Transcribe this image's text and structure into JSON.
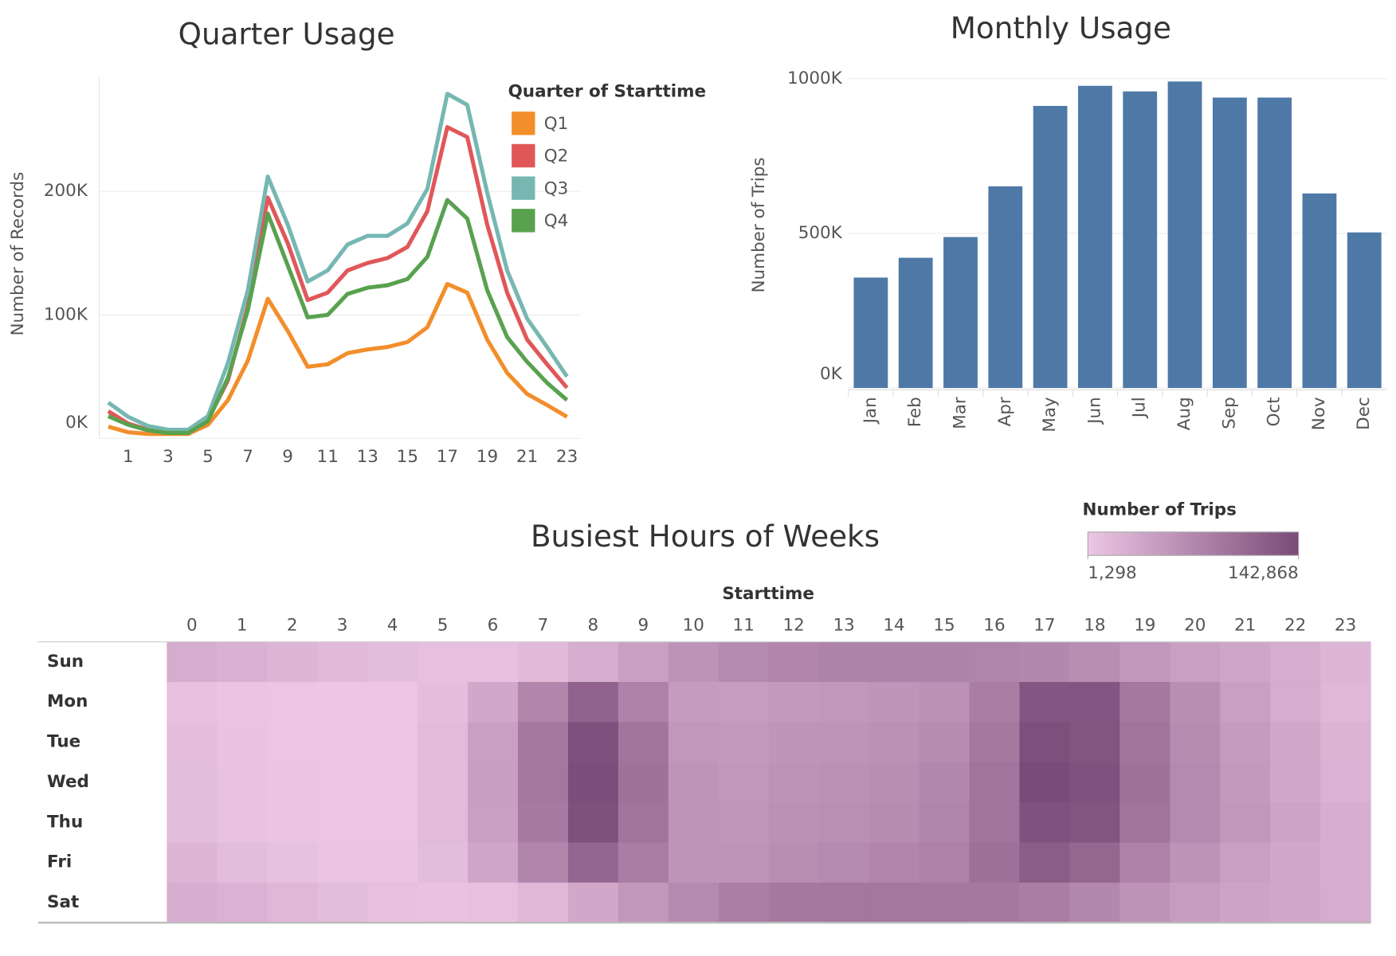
{
  "chart_data": [
    {
      "type": "line",
      "title": "Quarter Usage",
      "y_label": "Number of Records",
      "legend_title": "Quarter of Starttime",
      "x": [
        0,
        1,
        2,
        3,
        4,
        5,
        6,
        7,
        8,
        9,
        10,
        11,
        12,
        13,
        14,
        15,
        16,
        17,
        18,
        19,
        20,
        21,
        22,
        23
      ],
      "xlim": [
        -0.45,
        23.7
      ],
      "xticks": [
        1,
        3,
        5,
        7,
        9,
        11,
        13,
        15,
        17,
        19,
        21,
        23
      ],
      "ylim": [
        0,
        293000
      ],
      "yticks": [
        {
          "value": 0,
          "label": "0K"
        },
        {
          "value": 100000,
          "label": "100K"
        },
        {
          "value": 200000,
          "label": "200K"
        }
      ],
      "grid": true,
      "series": [
        {
          "name": "Q1",
          "color": "#f28e2b",
          "values": [
            9500,
            5000,
            3600,
            3600,
            3600,
            11000,
            31000,
            63000,
            113000,
            87000,
            58000,
            60000,
            69000,
            72000,
            74000,
            78000,
            90000,
            125000,
            118000,
            80000,
            53000,
            36000,
            27000,
            17500
          ]
        },
        {
          "name": "Q2",
          "color": "#e15759",
          "values": [
            22000,
            12000,
            7000,
            5000,
            5000,
            15000,
            47000,
            107000,
            195000,
            158000,
            112000,
            118000,
            136000,
            142000,
            146000,
            155000,
            184000,
            252000,
            244000,
            173000,
            118000,
            80000,
            60000,
            41000
          ]
        },
        {
          "name": "Q3",
          "color": "#76b7b2",
          "values": [
            29000,
            17500,
            10000,
            7000,
            7000,
            18000,
            61000,
            120000,
            212000,
            173000,
            127000,
            136000,
            157000,
            164000,
            164000,
            174000,
            202000,
            279000,
            270000,
            199000,
            136000,
            97000,
            74000,
            50000
          ]
        },
        {
          "name": "Q4",
          "color": "#59a14f",
          "values": [
            18000,
            11000,
            6500,
            4400,
            4400,
            14000,
            49000,
            104000,
            182000,
            140000,
            98000,
            100000,
            117000,
            122000,
            124000,
            129000,
            147000,
            193000,
            178000,
            120000,
            82000,
            62000,
            45000,
            31000
          ]
        }
      ]
    },
    {
      "type": "bar",
      "title": "Monthly Usage",
      "y_label": "Number of Trips",
      "categories": [
        "Jan",
        "Feb",
        "Mar",
        "Apr",
        "May",
        "Jun",
        "Jul",
        "Aug",
        "Sep",
        "Oct",
        "Nov",
        "Dec"
      ],
      "values": [
        357000,
        421000,
        488000,
        652000,
        912000,
        977000,
        959000,
        991000,
        939000,
        939000,
        629000,
        503000
      ],
      "color": "#4e79a7",
      "ylim": [
        0,
        1010000
      ],
      "yticks": [
        {
          "value": 0,
          "label": "0K"
        },
        {
          "value": 500000,
          "label": "500K"
        },
        {
          "value": 1000000,
          "label": "1000K"
        }
      ],
      "grid": true
    },
    {
      "type": "heatmap",
      "title": "Busiest Hours of Weeks",
      "x_label": "Starttime",
      "columns": [
        0,
        1,
        2,
        3,
        4,
        5,
        6,
        7,
        8,
        9,
        10,
        11,
        12,
        13,
        14,
        15,
        16,
        17,
        18,
        19,
        20,
        21,
        22,
        23
      ],
      "rows": [
        "Sun",
        "Mon",
        "Tue",
        "Wed",
        "Thu",
        "Fri",
        "Sat"
      ],
      "values": [
        [
          30000,
          25000,
          20000,
          15000,
          12000,
          8000,
          8000,
          15000,
          30000,
          45000,
          60000,
          70000,
          75000,
          78000,
          78000,
          78000,
          76000,
          72000,
          65000,
          55000,
          45000,
          38000,
          30000,
          20000
        ],
        [
          8000,
          4000,
          2500,
          1298,
          2000,
          10000,
          35000,
          75000,
          115000,
          80000,
          50000,
          48000,
          52000,
          55000,
          57000,
          62000,
          85000,
          130000,
          130000,
          90000,
          65000,
          45000,
          30000,
          18000
        ],
        [
          10000,
          5000,
          3000,
          1800,
          2500,
          14000,
          45000,
          90000,
          138000,
          95000,
          55000,
          52000,
          57000,
          58000,
          62000,
          68000,
          90000,
          138000,
          132000,
          95000,
          68000,
          50000,
          35000,
          22000
        ],
        [
          12000,
          6000,
          3500,
          2000,
          2800,
          14000,
          46000,
          92000,
          140000,
          97000,
          58000,
          55000,
          60000,
          62000,
          65000,
          72000,
          95000,
          142868,
          135000,
          97000,
          70000,
          52000,
          36000,
          24000
        ],
        [
          12000,
          6000,
          3500,
          2000,
          2800,
          14000,
          45000,
          88000,
          136000,
          95000,
          58000,
          56000,
          62000,
          64000,
          68000,
          74000,
          95000,
          135000,
          132000,
          95000,
          70000,
          55000,
          40000,
          28000
        ],
        [
          20000,
          12000,
          7000,
          4000,
          3500,
          12000,
          38000,
          75000,
          112000,
          85000,
          58000,
          58000,
          65000,
          70000,
          75000,
          80000,
          100000,
          122000,
          110000,
          80000,
          60000,
          45000,
          35000,
          28000
        ],
        [
          28000,
          24000,
          18000,
          12000,
          8000,
          6000,
          8000,
          18000,
          35000,
          55000,
          70000,
          82000,
          90000,
          92000,
          92000,
          92000,
          90000,
          85000,
          72000,
          60000,
          48000,
          40000,
          35000,
          30000
        ]
      ],
      "color_range": [
        "#ecc6e4",
        "#7a4a78"
      ],
      "legend": {
        "title": "Number of Trips",
        "min": {
          "value": 1298,
          "label": "1,298"
        },
        "max": {
          "value": 142868,
          "label": "142,868"
        }
      }
    }
  ]
}
